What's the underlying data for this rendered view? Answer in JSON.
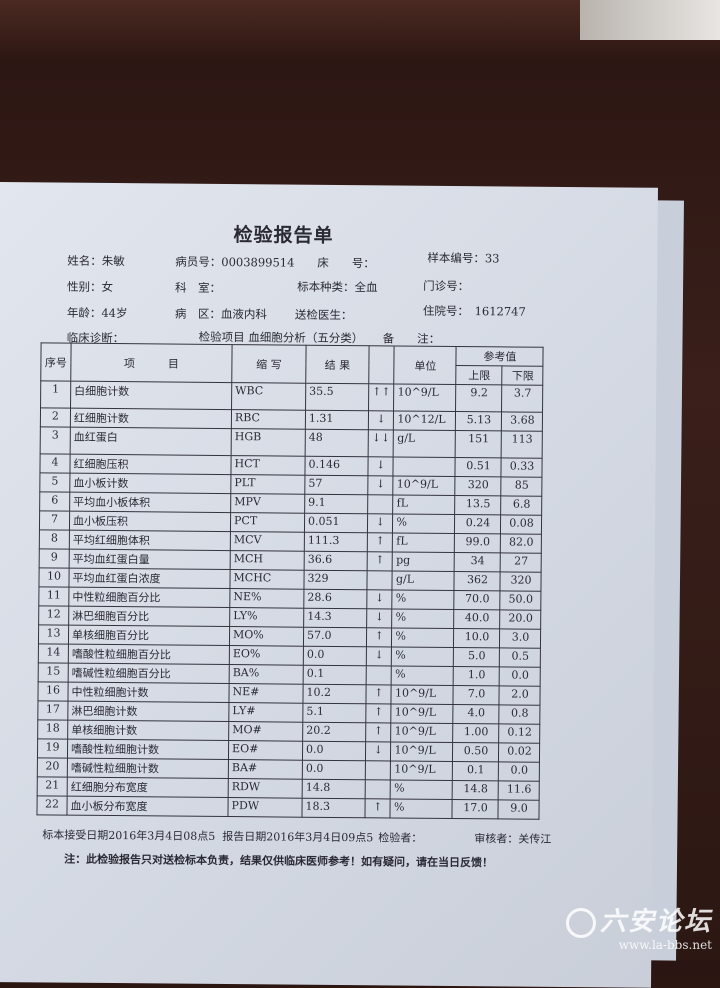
{
  "report": {
    "title": "检验报告单",
    "fields": {
      "name": "姓名：朱敏",
      "patient_no": "病员号：0003899514",
      "bed_no": "床　　号：",
      "sample_no": "样本编号：33",
      "sex": "性别：女",
      "department": "科　室：",
      "sample_type": "标本种类：全血",
      "clinic_no": "门诊号：",
      "age": "年龄：44岁",
      "ward": "病　区：血液内科",
      "doctor": "送检医生：",
      "inpatient_no": "住院号：　1612747",
      "diagnosis": "临床诊断：",
      "test_item": "检验项目 血细胞分析（五分类）",
      "remark": "备　　注："
    },
    "table": {
      "headers": {
        "no": "序号",
        "item": "项　　　目",
        "abbr": "缩 写",
        "result": "结 果",
        "unit": "单位",
        "ref": "参考值",
        "upper": "上限",
        "lower": "下限"
      },
      "rows": [
        {
          "no": "1",
          "item": "白细胞计数",
          "abbr": "WBC",
          "result": "35.5",
          "flag": "↑↑",
          "unit": "10^9/L",
          "upper": "9.2",
          "lower": "3.7"
        },
        {
          "no": "2",
          "item": "红细胞计数",
          "abbr": "RBC",
          "result": "1.31",
          "flag": "↓",
          "unit": "10^12/L",
          "upper": "5.13",
          "lower": "3.68"
        },
        {
          "no": "3",
          "item": "血红蛋白",
          "abbr": "HGB",
          "result": "48",
          "flag": "↓↓",
          "unit": "g/L",
          "upper": "151",
          "lower": "113"
        },
        {
          "no": "4",
          "item": "红细胞压积",
          "abbr": "HCT",
          "result": "0.146",
          "flag": "↓",
          "unit": "",
          "upper": "0.51",
          "lower": "0.33"
        },
        {
          "no": "5",
          "item": "血小板计数",
          "abbr": "PLT",
          "result": "57",
          "flag": "↓",
          "unit": "10^9/L",
          "upper": "320",
          "lower": "85"
        },
        {
          "no": "6",
          "item": "平均血小板体积",
          "abbr": "MPV",
          "result": "9.1",
          "flag": "",
          "unit": "fL",
          "upper": "13.5",
          "lower": "6.8"
        },
        {
          "no": "7",
          "item": "血小板压积",
          "abbr": "PCT",
          "result": "0.051",
          "flag": "↓",
          "unit": "%",
          "upper": "0.24",
          "lower": "0.08"
        },
        {
          "no": "8",
          "item": "平均红细胞体积",
          "abbr": "MCV",
          "result": "111.3",
          "flag": "↑",
          "unit": "fL",
          "upper": "99.0",
          "lower": "82.0"
        },
        {
          "no": "9",
          "item": "平均血红蛋白量",
          "abbr": "MCH",
          "result": "36.6",
          "flag": "↑",
          "unit": "pg",
          "upper": "34",
          "lower": "27"
        },
        {
          "no": "10",
          "item": "平均血红蛋白浓度",
          "abbr": "MCHC",
          "result": "329",
          "flag": "",
          "unit": "g/L",
          "upper": "362",
          "lower": "320"
        },
        {
          "no": "11",
          "item": "中性粒细胞百分比",
          "abbr": "NE%",
          "result": "28.6",
          "flag": "↓",
          "unit": "%",
          "upper": "70.0",
          "lower": "50.0"
        },
        {
          "no": "12",
          "item": "淋巴细胞百分比",
          "abbr": "LY%",
          "result": "14.3",
          "flag": "↓",
          "unit": "%",
          "upper": "40.0",
          "lower": "20.0"
        },
        {
          "no": "13",
          "item": "单核细胞百分比",
          "abbr": "MO%",
          "result": "57.0",
          "flag": "↑",
          "unit": "%",
          "upper": "10.0",
          "lower": "3.0"
        },
        {
          "no": "14",
          "item": "嗜酸性粒细胞百分比",
          "abbr": "EO%",
          "result": "0.0",
          "flag": "↓",
          "unit": "%",
          "upper": "5.0",
          "lower": "0.5"
        },
        {
          "no": "15",
          "item": "嗜碱性粒细胞百分比",
          "abbr": "BA%",
          "result": "0.1",
          "flag": "",
          "unit": "%",
          "upper": "1.0",
          "lower": "0.0"
        },
        {
          "no": "16",
          "item": "中性粒细胞计数",
          "abbr": "NE#",
          "result": "10.2",
          "flag": "↑",
          "unit": "10^9/L",
          "upper": "7.0",
          "lower": "2.0"
        },
        {
          "no": "17",
          "item": "淋巴细胞计数",
          "abbr": "LY#",
          "result": "5.1",
          "flag": "↑",
          "unit": "10^9/L",
          "upper": "4.0",
          "lower": "0.8"
        },
        {
          "no": "18",
          "item": "单核细胞计数",
          "abbr": "MO#",
          "result": "20.2",
          "flag": "↑",
          "unit": "10^9/L",
          "upper": "1.00",
          "lower": "0.12"
        },
        {
          "no": "19",
          "item": "嗜酸性粒细胞计数",
          "abbr": "EO#",
          "result": "0.0",
          "flag": "↓",
          "unit": "10^9/L",
          "upper": "0.50",
          "lower": "0.02"
        },
        {
          "no": "20",
          "item": "嗜碱性粒细胞计数",
          "abbr": "BA#",
          "result": "0.0",
          "flag": "",
          "unit": "10^9/L",
          "upper": "0.1",
          "lower": "0.0"
        },
        {
          "no": "21",
          "item": "红细胞分布宽度",
          "abbr": "RDW",
          "result": "14.8",
          "flag": "",
          "unit": "%",
          "upper": "14.8",
          "lower": "11.6"
        },
        {
          "no": "22",
          "item": "血小板分布宽度",
          "abbr": "PDW",
          "result": "18.3",
          "flag": "↑",
          "unit": "%",
          "upper": "17.0",
          "lower": "9.0"
        }
      ]
    },
    "footer": {
      "received": "标本接受日期2016年3月4日08点5",
      "reported": "报告日期2016年3月4日09点5",
      "tester": "检验者：",
      "reviewer": "审核者：关传江",
      "note": "注：此检验报告只对送检标本负责，结果仅供临床医师参考！如有疑问，请在当日反馈！"
    }
  },
  "watermark": {
    "logo": "六安论坛",
    "url": "www.la-bbs.net"
  }
}
